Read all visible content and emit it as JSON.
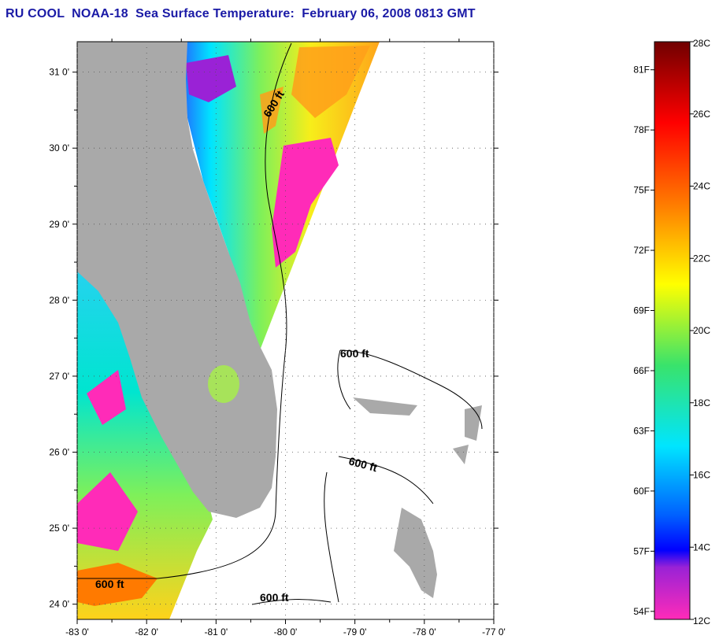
{
  "title": "RU COOL  NOAA-18  Sea Surface Temperature:  February 06, 2008 0813 GMT",
  "map": {
    "lon_ticks": [
      "-83 0'",
      "-82 0'",
      "-81 0'",
      "-80 0'",
      "-79 0'",
      "-78 0'",
      "-77 0'"
    ],
    "lat_ticks": [
      "31 0'",
      "30 0'",
      "29 0'",
      "28 0'",
      "27 0'",
      "26 0'",
      "25 0'",
      "24 0'"
    ],
    "lon_range": [
      -83,
      -77
    ],
    "lat_range": [
      23.8,
      31.4
    ],
    "grid": "dotted",
    "land_color": "#a9a9a9",
    "no_data_color": "#ffffff",
    "isobath_label": "600 ft"
  },
  "colorbar": {
    "celsius_labels": [
      "28C",
      "26C",
      "24C",
      "22C",
      "20C",
      "18C",
      "16C",
      "14C",
      "12C"
    ],
    "fahrenheit_labels": [
      "81F",
      "78F",
      "75F",
      "72F",
      "69F",
      "66F",
      "63F",
      "60F",
      "57F",
      "54F"
    ],
    "colors": [
      "#7a0000",
      "#ff0000",
      "#ff7a00",
      "#ffff00",
      "#39e36b",
      "#00e5ff",
      "#0040ff",
      "#0000ff",
      "#9a22d6",
      "#ff2bb8"
    ]
  }
}
